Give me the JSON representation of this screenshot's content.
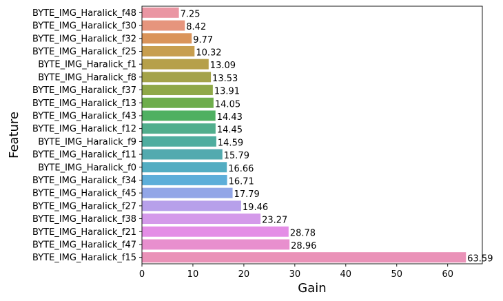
{
  "chart_data": {
    "type": "bar",
    "orientation": "horizontal",
    "xlabel": "Gain",
    "ylabel": "Feature",
    "xlim": [
      0,
      66.8
    ],
    "xticks": [
      0,
      10,
      20,
      30,
      40,
      50,
      60
    ],
    "grid": false,
    "categories": [
      "BYTE_IMG_Haralick_f48",
      "BYTE_IMG_Haralick_f30",
      "BYTE_IMG_Haralick_f32",
      "BYTE_IMG_Haralick_f25",
      "BYTE_IMG_Haralick_f1",
      "BYTE_IMG_Haralick_f8",
      "BYTE_IMG_Haralick_f37",
      "BYTE_IMG_Haralick_f13",
      "BYTE_IMG_Haralick_f43",
      "BYTE_IMG_Haralick_f12",
      "BYTE_IMG_Haralick_f9",
      "BYTE_IMG_Haralick_f11",
      "BYTE_IMG_Haralick_f0",
      "BYTE_IMG_Haralick_f34",
      "BYTE_IMG_Haralick_f45",
      "BYTE_IMG_Haralick_f27",
      "BYTE_IMG_Haralick_f38",
      "BYTE_IMG_Haralick_f21",
      "BYTE_IMG_Haralick_f47",
      "BYTE_IMG_Haralick_f15"
    ],
    "values": [
      7.25,
      8.42,
      9.77,
      10.32,
      13.09,
      13.53,
      13.91,
      14.05,
      14.43,
      14.45,
      14.59,
      15.79,
      16.66,
      16.71,
      17.79,
      19.46,
      23.27,
      28.78,
      28.96,
      63.59
    ],
    "value_labels": [
      "7.25",
      "8.42",
      "9.77",
      "10.32",
      "13.09",
      "13.53",
      "13.91",
      "14.05",
      "14.43",
      "14.45",
      "14.59",
      "15.79",
      "16.66",
      "16.71",
      "17.79",
      "19.46",
      "23.27",
      "28.78",
      "28.96",
      "63.59"
    ],
    "colors": [
      "#ea96a3",
      "#e6957d",
      "#da945a",
      "#c79e4f",
      "#b6a04a",
      "#a4a34a",
      "#8fa848",
      "#6ead4c",
      "#4fb061",
      "#51ae8d",
      "#4fad9f",
      "#53aaaf",
      "#53adc2",
      "#5daed9",
      "#92a6e7",
      "#b7a0ea",
      "#d49aea",
      "#e48ee6",
      "#e88fce",
      "#ea92b8"
    ]
  }
}
